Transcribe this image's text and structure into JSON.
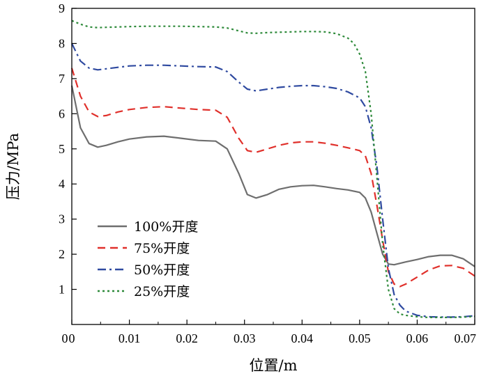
{
  "chart_data": {
    "type": "line",
    "xlabel": "位置/m",
    "ylabel": "压力/MPa",
    "xlim": [
      0,
      0.07
    ],
    "ylim": [
      0,
      9
    ],
    "xticks": [
      0,
      0.01,
      0.02,
      0.03,
      0.04,
      0.05,
      0.06,
      0.07
    ],
    "xtick_labels": [
      "0",
      "0.01",
      "0.02",
      "0.03",
      "0.04",
      "0.05",
      "0.06",
      "0.07"
    ],
    "yticks": [
      1,
      2,
      3,
      4,
      5,
      6,
      7,
      8,
      9
    ],
    "ytick_labels": [
      "1",
      "2",
      "3",
      "4",
      "5",
      "6",
      "7",
      "8",
      "9"
    ],
    "grid": false,
    "legend_position": "bottom-left",
    "series": [
      {
        "name": "100%开度",
        "color": "#6e6e6e",
        "dash": "solid",
        "x": [
          0,
          0.0015,
          0.003,
          0.0045,
          0.006,
          0.008,
          0.01,
          0.013,
          0.016,
          0.019,
          0.022,
          0.025,
          0.027,
          0.029,
          0.0305,
          0.032,
          0.034,
          0.036,
          0.038,
          0.04,
          0.042,
          0.044,
          0.046,
          0.048,
          0.05,
          0.051,
          0.052,
          0.053,
          0.054,
          0.055,
          0.056,
          0.058,
          0.06,
          0.062,
          0.064,
          0.066,
          0.068,
          0.07
        ],
        "values": [
          6.8,
          5.6,
          5.15,
          5.05,
          5.1,
          5.2,
          5.28,
          5.34,
          5.36,
          5.3,
          5.24,
          5.22,
          5.0,
          4.3,
          3.7,
          3.6,
          3.7,
          3.85,
          3.92,
          3.95,
          3.96,
          3.92,
          3.87,
          3.83,
          3.76,
          3.6,
          3.2,
          2.6,
          2.0,
          1.72,
          1.7,
          1.78,
          1.85,
          1.93,
          1.97,
          1.97,
          1.87,
          1.65
        ]
      },
      {
        "name": "75%开度",
        "color": "#e0302b",
        "dash": "dash",
        "x": [
          0,
          0.0015,
          0.003,
          0.0045,
          0.006,
          0.008,
          0.01,
          0.013,
          0.016,
          0.019,
          0.022,
          0.025,
          0.027,
          0.029,
          0.0305,
          0.032,
          0.034,
          0.036,
          0.038,
          0.04,
          0.042,
          0.044,
          0.046,
          0.048,
          0.05,
          0.051,
          0.052,
          0.053,
          0.054,
          0.055,
          0.056,
          0.057,
          0.058,
          0.06,
          0.062,
          0.064,
          0.066,
          0.068,
          0.07
        ],
        "values": [
          7.3,
          6.5,
          6.05,
          5.92,
          5.95,
          6.05,
          6.12,
          6.18,
          6.2,
          6.16,
          6.12,
          6.1,
          5.9,
          5.3,
          4.95,
          4.9,
          5.0,
          5.1,
          5.17,
          5.2,
          5.2,
          5.16,
          5.1,
          5.03,
          4.95,
          4.8,
          4.3,
          3.4,
          2.4,
          1.5,
          1.15,
          1.08,
          1.15,
          1.35,
          1.55,
          1.67,
          1.68,
          1.6,
          1.38
        ]
      },
      {
        "name": "50%开度",
        "color": "#2f4aa0",
        "dash": "dashdot",
        "x": [
          0,
          0.0015,
          0.003,
          0.0045,
          0.006,
          0.008,
          0.01,
          0.013,
          0.016,
          0.019,
          0.022,
          0.025,
          0.027,
          0.029,
          0.0305,
          0.032,
          0.034,
          0.036,
          0.038,
          0.04,
          0.042,
          0.044,
          0.046,
          0.048,
          0.05,
          0.051,
          0.052,
          0.053,
          0.054,
          0.055,
          0.056,
          0.057,
          0.058,
          0.06,
          0.062,
          0.064,
          0.066,
          0.068,
          0.07
        ],
        "values": [
          8.0,
          7.5,
          7.3,
          7.25,
          7.28,
          7.32,
          7.36,
          7.38,
          7.38,
          7.36,
          7.34,
          7.33,
          7.2,
          6.9,
          6.7,
          6.65,
          6.7,
          6.75,
          6.78,
          6.8,
          6.8,
          6.77,
          6.72,
          6.62,
          6.45,
          6.2,
          5.6,
          4.5,
          3.0,
          1.6,
          0.85,
          0.55,
          0.38,
          0.26,
          0.22,
          0.21,
          0.21,
          0.22,
          0.25
        ]
      },
      {
        "name": "25%开度",
        "color": "#2e8a3a",
        "dash": "dot",
        "x": [
          0,
          0.0015,
          0.003,
          0.0045,
          0.006,
          0.008,
          0.01,
          0.013,
          0.016,
          0.019,
          0.022,
          0.025,
          0.027,
          0.029,
          0.0305,
          0.032,
          0.034,
          0.036,
          0.038,
          0.04,
          0.042,
          0.044,
          0.046,
          0.048,
          0.049,
          0.05,
          0.051,
          0.052,
          0.053,
          0.054,
          0.055,
          0.056,
          0.057,
          0.058,
          0.06,
          0.062,
          0.064,
          0.066,
          0.068,
          0.07
        ],
        "values": [
          8.65,
          8.55,
          8.47,
          8.45,
          8.46,
          8.47,
          8.48,
          8.49,
          8.49,
          8.49,
          8.48,
          8.47,
          8.44,
          8.36,
          8.3,
          8.29,
          8.31,
          8.32,
          8.33,
          8.34,
          8.34,
          8.33,
          8.28,
          8.15,
          8.0,
          7.7,
          7.2,
          6.0,
          4.2,
          2.3,
          1.0,
          0.45,
          0.3,
          0.26,
          0.22,
          0.2,
          0.2,
          0.2,
          0.21,
          0.23
        ]
      }
    ]
  }
}
